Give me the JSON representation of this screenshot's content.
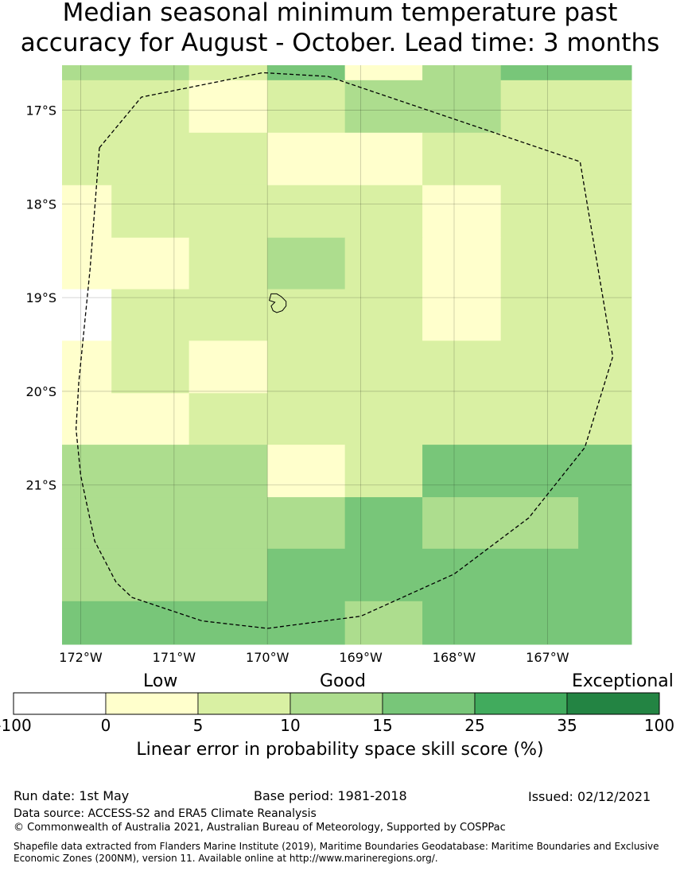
{
  "title_line1": "Median seasonal minimum temperature past",
  "title_line2": "accuracy for August - October. Lead time: 3 months",
  "map": {
    "lon_range": [
      -172.2,
      -166.1
    ],
    "lat_range": [
      -22.7,
      -16.52
    ],
    "lon_ticks": [
      {
        "value": -172,
        "label": "172°W"
      },
      {
        "value": -171,
        "label": "171°W"
      },
      {
        "value": -170,
        "label": "170°W"
      },
      {
        "value": -169,
        "label": "169°W"
      },
      {
        "value": -168,
        "label": "168°W"
      },
      {
        "value": -167,
        "label": "167°W"
      }
    ],
    "lat_ticks": [
      {
        "value": -17,
        "label": "17°S"
      },
      {
        "value": -18,
        "label": "18°S"
      },
      {
        "value": -19,
        "label": "19°S"
      },
      {
        "value": -20,
        "label": "20°S"
      },
      {
        "value": -21,
        "label": "21°S"
      }
    ],
    "colors": [
      "#ffffff",
      "#ffffcc",
      "#d9f0a3",
      "#addd8e",
      "#78c679",
      "#41ab5d",
      "#238443"
    ],
    "cells": [
      {
        "lon": [
          -172.2,
          -170.84
        ],
        "lat": [
          -16.68,
          -16.52
        ],
        "cls": 3
      },
      {
        "lon": [
          -170.84,
          -170.0
        ],
        "lat": [
          -16.68,
          -16.52
        ],
        "cls": 2
      },
      {
        "lon": [
          -170.0,
          -169.17
        ],
        "lat": [
          -16.68,
          -16.52
        ],
        "cls": 4
      },
      {
        "lon": [
          -169.17,
          -168.34
        ],
        "lat": [
          -16.68,
          -16.52
        ],
        "cls": 1
      },
      {
        "lon": [
          -168.34,
          -167.5
        ],
        "lat": [
          -16.68,
          -16.52
        ],
        "cls": 3
      },
      {
        "lon": [
          -167.5,
          -166.1
        ],
        "lat": [
          -16.68,
          -16.52
        ],
        "cls": 4
      },
      {
        "lon": [
          -172.2,
          -170.84
        ],
        "lat": [
          -17.24,
          -16.68
        ],
        "cls": 2
      },
      {
        "lon": [
          -170.84,
          -170.0
        ],
        "lat": [
          -17.24,
          -16.68
        ],
        "cls": 1
      },
      {
        "lon": [
          -170.0,
          -169.17
        ],
        "lat": [
          -17.24,
          -16.68
        ],
        "cls": 2
      },
      {
        "lon": [
          -169.17,
          -167.5
        ],
        "lat": [
          -17.24,
          -16.68
        ],
        "cls": 3
      },
      {
        "lon": [
          -167.5,
          -166.1
        ],
        "lat": [
          -17.24,
          -16.68
        ],
        "cls": 2
      },
      {
        "lon": [
          -172.2,
          -170.0
        ],
        "lat": [
          -17.8,
          -17.24
        ],
        "cls": 2
      },
      {
        "lon": [
          -170.0,
          -168.34
        ],
        "lat": [
          -17.8,
          -17.24
        ],
        "cls": 1
      },
      {
        "lon": [
          -168.34,
          -166.1
        ],
        "lat": [
          -17.8,
          -17.24
        ],
        "cls": 2
      },
      {
        "lon": [
          -172.2,
          -171.67
        ],
        "lat": [
          -18.36,
          -17.8
        ],
        "cls": 1
      },
      {
        "lon": [
          -171.67,
          -168.34
        ],
        "lat": [
          -18.36,
          -17.8
        ],
        "cls": 2
      },
      {
        "lon": [
          -168.34,
          -167.5
        ],
        "lat": [
          -18.36,
          -17.8
        ],
        "cls": 1
      },
      {
        "lon": [
          -167.5,
          -166.1
        ],
        "lat": [
          -18.36,
          -17.8
        ],
        "cls": 2
      },
      {
        "lon": [
          -172.2,
          -170.84
        ],
        "lat": [
          -18.91,
          -18.36
        ],
        "cls": 1
      },
      {
        "lon": [
          -170.84,
          -170.0
        ],
        "lat": [
          -18.91,
          -18.36
        ],
        "cls": 2
      },
      {
        "lon": [
          -170.0,
          -169.17
        ],
        "lat": [
          -18.91,
          -18.36
        ],
        "cls": 3
      },
      {
        "lon": [
          -169.17,
          -168.34
        ],
        "lat": [
          -18.91,
          -18.36
        ],
        "cls": 2
      },
      {
        "lon": [
          -168.34,
          -167.5
        ],
        "lat": [
          -18.91,
          -18.36
        ],
        "cls": 1
      },
      {
        "lon": [
          -167.5,
          -166.1
        ],
        "lat": [
          -18.91,
          -18.36
        ],
        "cls": 2
      },
      {
        "lon": [
          -172.2,
          -171.67
        ],
        "lat": [
          -19.46,
          -18.91
        ],
        "cls": 0
      },
      {
        "lon": [
          -171.67,
          -168.34
        ],
        "lat": [
          -19.46,
          -18.91
        ],
        "cls": 2
      },
      {
        "lon": [
          -168.34,
          -167.5
        ],
        "lat": [
          -19.46,
          -18.91
        ],
        "cls": 1
      },
      {
        "lon": [
          -167.5,
          -166.1
        ],
        "lat": [
          -19.46,
          -18.91
        ],
        "cls": 2
      },
      {
        "lon": [
          -172.2,
          -171.67
        ],
        "lat": [
          -20.02,
          -19.46
        ],
        "cls": 1
      },
      {
        "lon": [
          -171.67,
          -170.84
        ],
        "lat": [
          -20.02,
          -19.46
        ],
        "cls": 2
      },
      {
        "lon": [
          -170.84,
          -170.0
        ],
        "lat": [
          -20.02,
          -19.46
        ],
        "cls": 1
      },
      {
        "lon": [
          -170.0,
          -166.1
        ],
        "lat": [
          -20.02,
          -19.46
        ],
        "cls": 2
      },
      {
        "lon": [
          -172.2,
          -170.84
        ],
        "lat": [
          -20.57,
          -20.02
        ],
        "cls": 1
      },
      {
        "lon": [
          -170.84,
          -166.1
        ],
        "lat": [
          -20.57,
          -20.02
        ],
        "cls": 2
      },
      {
        "lon": [
          -172.2,
          -170.0
        ],
        "lat": [
          -21.13,
          -20.57
        ],
        "cls": 3
      },
      {
        "lon": [
          -170.0,
          -169.17
        ],
        "lat": [
          -21.13,
          -20.57
        ],
        "cls": 1
      },
      {
        "lon": [
          -169.17,
          -168.34
        ],
        "lat": [
          -21.13,
          -20.57
        ],
        "cls": 2
      },
      {
        "lon": [
          -168.34,
          -166.1
        ],
        "lat": [
          -21.13,
          -20.57
        ],
        "cls": 4
      },
      {
        "lon": [
          -172.2,
          -170.0
        ],
        "lat": [
          -21.68,
          -21.13
        ],
        "cls": 3
      },
      {
        "lon": [
          -170.0,
          -169.17
        ],
        "lat": [
          -21.68,
          -21.13
        ],
        "cls": 3
      },
      {
        "lon": [
          -169.17,
          -168.34
        ],
        "lat": [
          -21.68,
          -21.13
        ],
        "cls": 4
      },
      {
        "lon": [
          -168.34,
          -166.67
        ],
        "lat": [
          -21.68,
          -21.13
        ],
        "cls": 3
      },
      {
        "lon": [
          -166.67,
          -166.1
        ],
        "lat": [
          -21.68,
          -21.13
        ],
        "cls": 4
      },
      {
        "lon": [
          -172.2,
          -170.0
        ],
        "lat": [
          -22.24,
          -21.68
        ],
        "cls": 3
      },
      {
        "lon": [
          -170.0,
          -166.1
        ],
        "lat": [
          -22.24,
          -21.68
        ],
        "cls": 4
      },
      {
        "lon": [
          -172.2,
          -169.17
        ],
        "lat": [
          -22.7,
          -22.24
        ],
        "cls": 4
      },
      {
        "lon": [
          -169.17,
          -168.34
        ],
        "lat": [
          -22.7,
          -22.24
        ],
        "cls": 3
      },
      {
        "lon": [
          -168.34,
          -166.1
        ],
        "lat": [
          -22.7,
          -22.24
        ],
        "cls": 4
      }
    ],
    "eez_boundary": [
      [
        -171.8,
        -17.4
      ],
      [
        -171.35,
        -16.86
      ],
      [
        -170.05,
        -16.6
      ],
      [
        -169.35,
        -16.64
      ],
      [
        -166.65,
        -17.55
      ],
      [
        -166.3,
        -19.63
      ],
      [
        -166.6,
        -20.6
      ],
      [
        -167.2,
        -21.35
      ],
      [
        -168.0,
        -21.95
      ],
      [
        -169.0,
        -22.4
      ],
      [
        -170.0,
        -22.53
      ],
      [
        -170.7,
        -22.45
      ],
      [
        -171.45,
        -22.2
      ],
      [
        -171.62,
        -22.04
      ],
      [
        -171.85,
        -21.6
      ],
      [
        -172.0,
        -20.9
      ],
      [
        -172.05,
        -20.4
      ],
      [
        -172.02,
        -19.9
      ],
      [
        -171.9,
        -18.7
      ],
      [
        -171.8,
        -17.4
      ]
    ],
    "island": [
      [
        -169.96,
        -18.96
      ],
      [
        -169.9,
        -18.96
      ],
      [
        -169.85,
        -18.99
      ],
      [
        -169.8,
        -19.04
      ],
      [
        -169.8,
        -19.09
      ],
      [
        -169.84,
        -19.14
      ],
      [
        -169.9,
        -19.16
      ],
      [
        -169.94,
        -19.14
      ],
      [
        -169.96,
        -19.09
      ],
      [
        -169.92,
        -19.05
      ],
      [
        -169.98,
        -19.03
      ],
      [
        -169.96,
        -18.96
      ]
    ]
  },
  "legend": {
    "category_low": "Low",
    "category_good": "Good",
    "category_exceptional": "Exceptional",
    "ticks": [
      "-100",
      "0",
      "5",
      "10",
      "15",
      "25",
      "35",
      "100"
    ],
    "title": "Linear error in probability space skill score (%)"
  },
  "footer": {
    "run_date": "Run date: 1st May",
    "base_period": "Base period: 1981-2018",
    "issued": "Issued: 02/12/2021",
    "data_source": "Data source: ACCESS-S2 and ERA5 Climate Reanalysis",
    "copyright": "© Commonwealth of Australia 2021, Australian Bureau of Meteorology, Supported by COSPPac",
    "shapefile_line1": "Shapefile data extracted from Flanders Marine Institute (2019), Maritime Boundaries Geodatabase: Maritime Boundaries and Exclusive",
    "shapefile_line2": "Economic Zones (200NM), version 11. Available online at http://www.marineregions.org/."
  }
}
